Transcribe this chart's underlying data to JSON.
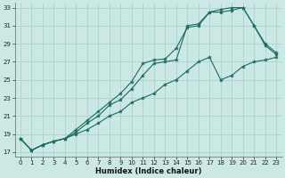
{
  "xlabel": "Humidex (Indice chaleur)",
  "background_color": "#cce8e4",
  "grid_color": "#aad4cf",
  "line_color": "#1a6b5e",
  "xlim": [
    -0.5,
    23.5
  ],
  "ylim": [
    16.5,
    33.5
  ],
  "xticks": [
    0,
    1,
    2,
    3,
    4,
    5,
    6,
    7,
    8,
    9,
    10,
    11,
    12,
    13,
    14,
    15,
    16,
    17,
    18,
    19,
    20,
    21,
    22,
    23
  ],
  "yticks": [
    17,
    19,
    21,
    23,
    25,
    27,
    29,
    31,
    33
  ],
  "ytick_labels": [
    "17",
    "19",
    "21",
    "23",
    "25",
    "27",
    "29",
    "31",
    "33"
  ],
  "line1_x": [
    0,
    1,
    2,
    3,
    4,
    5,
    6,
    7,
    8,
    9,
    10,
    11,
    12,
    13,
    14,
    15,
    16,
    17,
    18,
    19,
    20,
    21,
    22,
    23
  ],
  "line1_y": [
    18.5,
    17.2,
    17.8,
    18.2,
    18.5,
    19.5,
    20.5,
    21.5,
    22.5,
    23.5,
    24.8,
    26.8,
    27.2,
    27.3,
    28.5,
    30.8,
    31.0,
    32.5,
    32.8,
    33.0,
    33.0,
    31.0,
    29.0,
    28.0
  ],
  "line2_x": [
    0,
    1,
    2,
    3,
    4,
    5,
    6,
    7,
    8,
    9,
    10,
    11,
    12,
    13,
    14,
    15,
    16,
    17,
    18,
    19,
    20,
    21,
    22,
    23
  ],
  "line2_y": [
    18.5,
    17.2,
    17.8,
    18.2,
    18.5,
    19.2,
    20.2,
    21.0,
    22.2,
    22.8,
    24.0,
    25.5,
    26.8,
    27.0,
    27.2,
    31.0,
    31.2,
    32.5,
    32.5,
    32.7,
    33.0,
    31.0,
    28.8,
    27.8
  ],
  "line3_x": [
    0,
    1,
    2,
    3,
    4,
    5,
    6,
    7,
    8,
    9,
    10,
    11,
    12,
    13,
    14,
    15,
    16,
    17,
    18,
    19,
    20,
    21,
    22,
    23
  ],
  "line3_y": [
    18.5,
    17.2,
    17.8,
    18.2,
    18.5,
    19.0,
    19.5,
    20.2,
    21.0,
    21.5,
    22.5,
    23.0,
    23.5,
    24.5,
    25.0,
    26.0,
    27.0,
    27.5,
    25.0,
    25.5,
    26.5,
    27.0,
    27.2,
    27.5
  ]
}
